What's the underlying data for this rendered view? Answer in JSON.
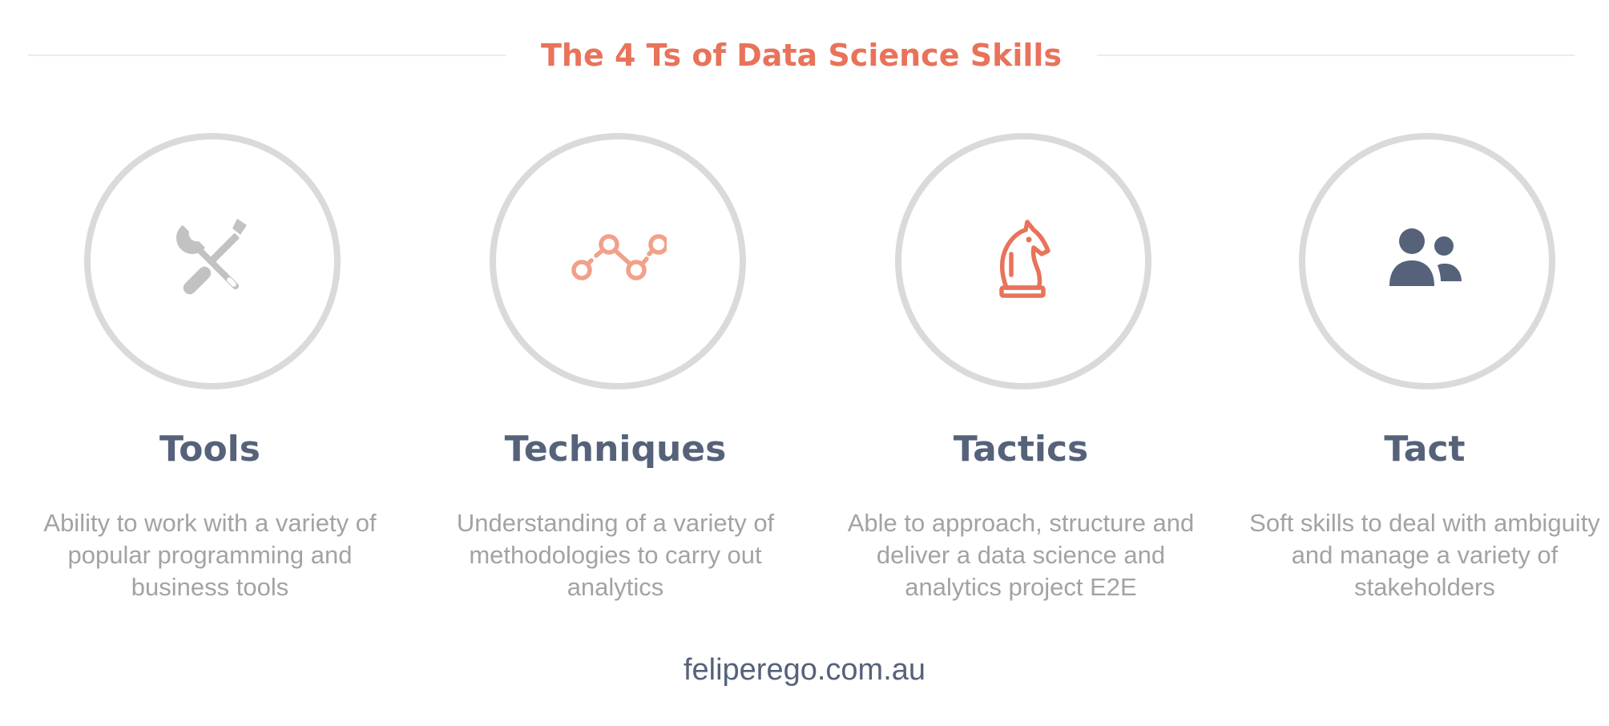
{
  "title": "The 4 Ts of Data Science Skills",
  "colors": {
    "accent": "#e8735a",
    "heading": "#55627a",
    "body_text": "#a3a3a3",
    "ring": "#dadada"
  },
  "columns": [
    {
      "key": "tools",
      "icon": "tools-icon",
      "title": "Tools",
      "description": "Ability to work with a variety of popular programming and business tools"
    },
    {
      "key": "techniques",
      "icon": "line-graph-icon",
      "title": "Techniques",
      "description": "Understanding of a variety of methodologies to carry out analytics"
    },
    {
      "key": "tactics",
      "icon": "chess-knight-icon",
      "title": "Tactics",
      "description": "Able to approach, structure and deliver a data science and analytics project E2E"
    },
    {
      "key": "tact",
      "icon": "people-icon",
      "title": "Tact",
      "description": "Soft skills to deal with ambiguity and manage a variety of stakeholders"
    }
  ],
  "footer": "feliperego.com.au"
}
